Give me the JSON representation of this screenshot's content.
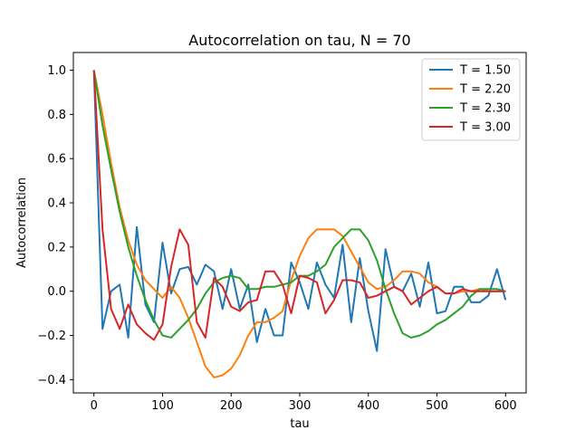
{
  "chart_data": {
    "type": "line",
    "title": "Autocorrelation on tau, N = 70",
    "xlabel": "tau",
    "ylabel": "Autocorrelation",
    "xlim": [
      -30,
      630
    ],
    "ylim": [
      -0.46,
      1.08
    ],
    "xticks": [
      0,
      100,
      200,
      300,
      400,
      500,
      600
    ],
    "yticks": [
      -0.4,
      -0.2,
      0.0,
      0.2,
      0.4,
      0.6,
      0.8,
      1.0
    ],
    "xtick_labels": [
      "0",
      "100",
      "200",
      "300",
      "400",
      "500",
      "600"
    ],
    "ytick_labels": [
      "−0.4",
      "−0.2",
      "0.0",
      "0.2",
      "0.4",
      "0.6",
      "0.8",
      "1.0"
    ],
    "grid": false,
    "legend_position": "top-right",
    "x": [
      0,
      12.5,
      25,
      37.5,
      50,
      62.5,
      75,
      87.5,
      100,
      112.5,
      125,
      137.5,
      150,
      162.5,
      175,
      187.5,
      200,
      212.5,
      225,
      237.5,
      250,
      262.5,
      275,
      287.5,
      300,
      312.5,
      325,
      337.5,
      350,
      362.5,
      375,
      387.5,
      400,
      412.5,
      425,
      437.5,
      450,
      462.5,
      475,
      487.5,
      500,
      512.5,
      525,
      537.5,
      550,
      562.5,
      575,
      587.5,
      600
    ],
    "series": [
      {
        "name": "T = 1.50",
        "color": "#1f77b4",
        "values": [
          1.0,
          -0.17,
          0.0,
          0.03,
          -0.21,
          0.29,
          -0.06,
          -0.14,
          0.22,
          -0.01,
          0.1,
          0.11,
          0.03,
          0.12,
          0.09,
          -0.08,
          0.1,
          -0.08,
          0.03,
          -0.23,
          -0.08,
          -0.2,
          -0.2,
          0.13,
          0.04,
          -0.08,
          0.13,
          0.03,
          -0.03,
          0.21,
          -0.14,
          0.15,
          -0.09,
          -0.27,
          0.19,
          0.02,
          0.0,
          0.08,
          -0.07,
          0.13,
          -0.1,
          -0.09,
          0.02,
          0.02,
          -0.05,
          -0.05,
          -0.02,
          0.1,
          -0.04
        ]
      },
      {
        "name": "T = 2.20",
        "color": "#ff7f0e",
        "values": [
          1.0,
          0.8,
          0.58,
          0.38,
          0.23,
          0.12,
          0.05,
          0.01,
          -0.03,
          0.02,
          -0.03,
          -0.12,
          -0.23,
          -0.34,
          -0.39,
          -0.38,
          -0.35,
          -0.29,
          -0.2,
          -0.14,
          -0.14,
          -0.12,
          -0.09,
          0.05,
          0.16,
          0.24,
          0.28,
          0.28,
          0.28,
          0.25,
          0.18,
          0.11,
          0.04,
          0.01,
          0.02,
          0.05,
          0.09,
          0.09,
          0.08,
          0.04,
          0.02,
          -0.01,
          -0.01,
          0.0,
          0.0,
          0.01,
          0.0,
          0.0,
          0.0
        ]
      },
      {
        "name": "T = 2.30",
        "color": "#2ca02c",
        "values": [
          1.0,
          0.75,
          0.55,
          0.36,
          0.2,
          0.07,
          -0.04,
          -0.13,
          -0.2,
          -0.21,
          -0.17,
          -0.13,
          -0.08,
          -0.01,
          0.04,
          0.06,
          0.07,
          0.06,
          0.01,
          0.01,
          0.02,
          0.02,
          0.03,
          0.04,
          0.07,
          0.07,
          0.09,
          0.12,
          0.2,
          0.24,
          0.28,
          0.28,
          0.23,
          0.14,
          0.01,
          -0.1,
          -0.19,
          -0.21,
          -0.2,
          -0.18,
          -0.15,
          -0.13,
          -0.1,
          -0.07,
          -0.02,
          0.01,
          0.01,
          0.01,
          0.0
        ]
      },
      {
        "name": "T = 3.00",
        "color": "#d62728",
        "values": [
          1.0,
          0.28,
          -0.08,
          -0.17,
          -0.06,
          -0.15,
          -0.19,
          -0.22,
          -0.15,
          0.11,
          0.28,
          0.21,
          -0.14,
          -0.21,
          0.06,
          0.02,
          -0.07,
          -0.09,
          -0.05,
          -0.04,
          0.09,
          0.09,
          0.03,
          -0.1,
          0.07,
          0.06,
          0.04,
          -0.1,
          -0.04,
          0.05,
          0.05,
          0.04,
          -0.03,
          -0.02,
          0.0,
          0.02,
          0.0,
          -0.06,
          -0.03,
          0.0,
          0.02,
          -0.01,
          -0.01,
          0.01,
          0.0,
          0.0,
          0.0,
          0.0,
          0.0
        ]
      }
    ]
  }
}
